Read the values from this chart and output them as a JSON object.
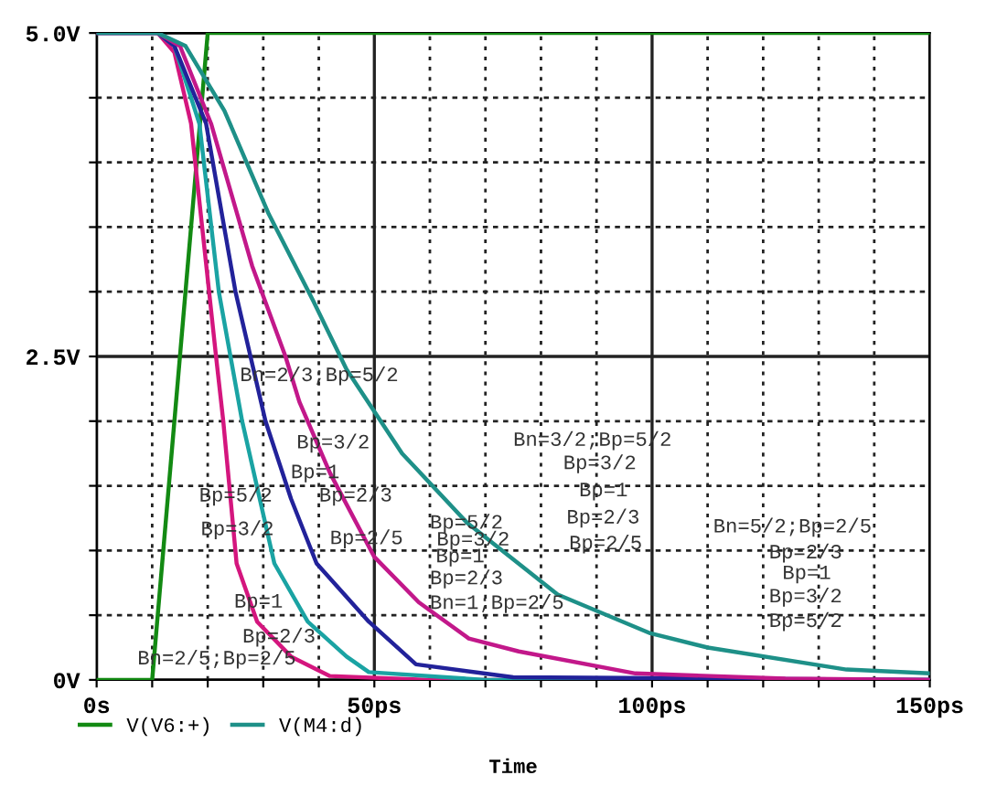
{
  "chart_data": {
    "type": "line",
    "xlabel": "Time",
    "xlim": [
      0,
      150
    ],
    "ylim": [
      0,
      5
    ],
    "xticks": [
      {
        "value": 0,
        "label": "0s"
      },
      {
        "value": 10,
        "label": null
      },
      {
        "value": 20,
        "label": null
      },
      {
        "value": 30,
        "label": null
      },
      {
        "value": 40,
        "label": null
      },
      {
        "value": 50,
        "label": "50ps"
      },
      {
        "value": 60,
        "label": null
      },
      {
        "value": 70,
        "label": null
      },
      {
        "value": 80,
        "label": null
      },
      {
        "value": 90,
        "label": null
      },
      {
        "value": 100,
        "label": "100ps"
      },
      {
        "value": 110,
        "label": null
      },
      {
        "value": 120,
        "label": null
      },
      {
        "value": 130,
        "label": null
      },
      {
        "value": 140,
        "label": null
      },
      {
        "value": 150,
        "label": "150ps"
      }
    ],
    "yticks": [
      {
        "value": 0,
        "label": "0V"
      },
      {
        "value": 0.5,
        "label": null
      },
      {
        "value": 1,
        "label": null
      },
      {
        "value": 1.5,
        "label": null
      },
      {
        "value": 2,
        "label": null
      },
      {
        "value": 2.5,
        "label": "2.5V"
      },
      {
        "value": 3,
        "label": null
      },
      {
        "value": 3.5,
        "label": null
      },
      {
        "value": 4,
        "label": null
      },
      {
        "value": 4.5,
        "label": null
      },
      {
        "value": 5,
        "label": "5.0V"
      }
    ],
    "grid": true,
    "legend": "bottom left",
    "series": [
      {
        "name": "V(V6:+)",
        "color": "#138a13",
        "x": [
          0,
          10,
          20,
          150
        ],
        "values": [
          0,
          0,
          5,
          5
        ]
      },
      {
        "color": "#d4167e",
        "x": [
          0,
          11,
          14,
          17,
          21.5,
          22.8,
          25.2,
          28.9,
          35,
          42,
          60,
          150
        ],
        "values": [
          5,
          5,
          4.85,
          4.3,
          2.5,
          2,
          0.9,
          0.45,
          0.18,
          0.03,
          0,
          0
        ]
      },
      {
        "color": "#1aa3a3",
        "x": [
          0,
          11,
          14,
          18.5,
          22,
          26.2,
          32,
          38,
          45,
          49,
          70,
          150
        ],
        "values": [
          5,
          5,
          4.9,
          4.3,
          3.0,
          2,
          0.9,
          0.45,
          0.18,
          0.06,
          0,
          0
        ]
      },
      {
        "color": "#22229a",
        "x": [
          0,
          11,
          14,
          19.7,
          25,
          30.4,
          35,
          39.6,
          49,
          57.5,
          75,
          150
        ],
        "values": [
          5,
          5,
          4.9,
          4.3,
          3.0,
          2,
          1.4,
          0.9,
          0.45,
          0.12,
          0.02,
          0
        ]
      },
      {
        "color": "#c2188a",
        "x": [
          0,
          11,
          15,
          20.6,
          28,
          34,
          36.5,
          42,
          50,
          58,
          67,
          76,
          97,
          124,
          150
        ],
        "values": [
          5,
          5,
          4.9,
          4.3,
          3.2,
          2.5,
          2.15,
          1.6,
          0.95,
          0.6,
          0.32,
          0.22,
          0.05,
          0.01,
          0
        ]
      },
      {
        "name": "V(M4:d)",
        "color": "#1e9088",
        "x": [
          0,
          11,
          16,
          23,
          31,
          39,
          45,
          55,
          66.8,
          83,
          99.7,
          110,
          135,
          150
        ],
        "values": [
          5,
          5,
          4.9,
          4.4,
          3.6,
          2.93,
          2.4,
          1.75,
          1.21,
          0.66,
          0.36,
          0.25,
          0.08,
          0.05
        ]
      }
    ],
    "annotations": [
      "Bn=2/3;Bp=5/2",
      "Bp=3/2",
      "Bp=1",
      "Bp=5/2",
      "Bp=2/3",
      "Bp=3/2",
      "Bp=2/5",
      "Bp=1",
      "Bp=2/3",
      "Bn=2/5;Bp=2/5",
      "Bp=5/2",
      "Bp=3/2",
      "Bp=1",
      "Bp=2/3",
      "Bn=1;Bp=2/5",
      "Bn=3/2;Bp=5/2",
      "Bp=3/2",
      "Bp=1",
      "Bp=2/3",
      "Bp=2/5",
      "Bn=5/2;Bp=2/5",
      "Bp=2/3",
      "Bp=1",
      "Bp=3/2",
      "Bp=5/2"
    ]
  }
}
